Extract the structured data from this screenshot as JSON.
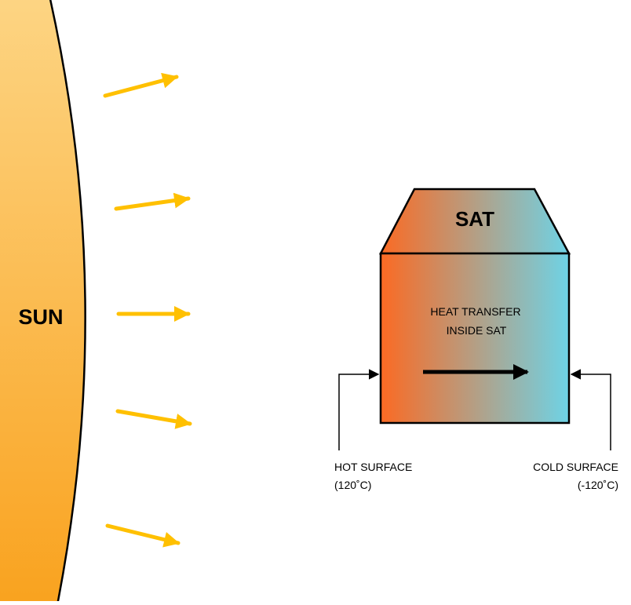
{
  "sun": {
    "label": "SUN",
    "gradient_top": "#FDD584",
    "gradient_bottom": "#F9A21E",
    "outline": "#000000"
  },
  "rays": {
    "color": "#FFC000",
    "count": 5
  },
  "satellite": {
    "title": "SAT",
    "hot_color": "#FB6A23",
    "cold_color": "#6ED3E6",
    "outline": "#000000",
    "internal_label_line1": "HEAT TRANSFER",
    "internal_label_line2": "INSIDE SAT"
  },
  "hot_surface": {
    "label_line1": "HOT SURFACE",
    "label_line2": "(120˚C)"
  },
  "cold_surface": {
    "label_line1": "COLD SURFACE",
    "label_line2": "(-120˚C)"
  }
}
